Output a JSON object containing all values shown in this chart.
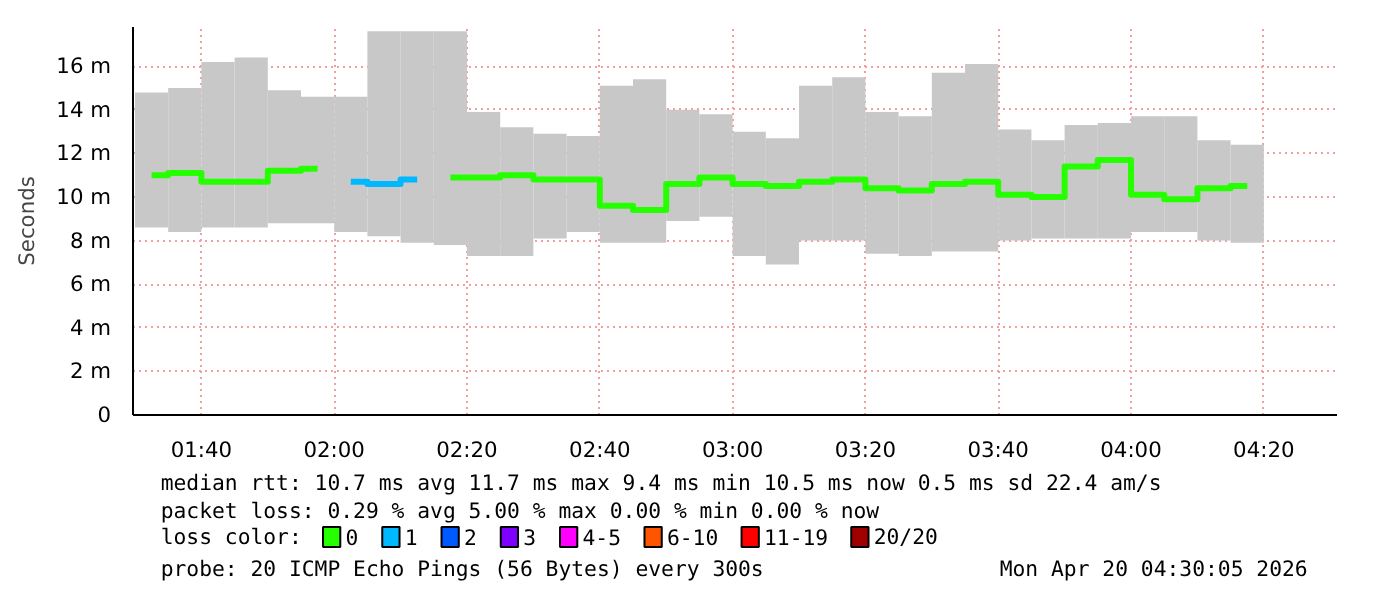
{
  "chart_data": {
    "type": "step",
    "ylabel": "Seconds",
    "x": [
      1.5417,
      1.625,
      1.7083,
      1.7917,
      1.875,
      1.9583,
      2.0417,
      2.125,
      2.2083,
      2.2917,
      2.375,
      2.4583,
      2.5417,
      2.625,
      2.7083,
      2.7917,
      2.875,
      2.9583,
      3.0417,
      3.125,
      3.2083,
      3.2917,
      3.375,
      3.4583,
      3.5417,
      3.625,
      3.7083,
      3.7917,
      3.875,
      3.9583,
      4.0417,
      4.125,
      4.2083,
      4.2917
    ],
    "series": [
      {
        "type": "bar",
        "color": "#c8c8c8",
        "base": [
          8.6,
          8.4,
          8.6,
          8.6,
          8.8,
          8.8,
          8.4,
          8.2,
          7.9,
          7.8,
          7.3,
          7.3,
          8.1,
          8.4,
          7.9,
          7.9,
          8.9,
          9.1,
          7.3,
          6.9,
          8.0,
          8.0,
          7.4,
          7.3,
          7.5,
          7.5,
          8.0,
          8.1,
          8.1,
          8.1,
          8.4,
          8.4,
          8.0,
          7.9
        ],
        "values": [
          6.2,
          6.6,
          7.6,
          7.8,
          6.1,
          5.8,
          6.2,
          9.4,
          9.7,
          9.8,
          6.6,
          5.9,
          4.8,
          4.4,
          7.2,
          7.5,
          5.1,
          4.7,
          5.7,
          5.8,
          7.1,
          7.5,
          6.5,
          6.4,
          8.2,
          8.6,
          5.1,
          4.5,
          5.2,
          5.3,
          5.3,
          5.3,
          4.6,
          4.5
        ]
      },
      {
        "name": "0",
        "color": "#26ff00",
        "values": [
          11.0,
          11.1,
          10.7,
          10.7,
          11.2,
          11.3,
          null,
          null,
          null,
          10.9,
          10.9,
          11.0,
          10.8,
          10.8,
          9.6,
          9.4,
          10.6,
          10.9,
          10.6,
          10.5,
          10.7,
          10.8,
          10.4,
          10.3,
          10.6,
          10.7,
          10.1,
          10.0,
          11.4,
          11.7,
          10.1,
          9.9,
          10.4,
          10.5
        ]
      },
      {
        "name": "1",
        "color": "#00b8ff",
        "values": [
          null,
          null,
          null,
          null,
          null,
          null,
          10.7,
          10.6,
          10.8,
          null,
          null,
          null,
          null,
          null,
          null,
          null,
          null,
          null,
          null,
          null,
          null,
          null,
          null,
          null,
          null,
          null,
          null,
          null,
          null,
          null,
          null,
          null,
          null,
          null
        ]
      },
      {
        "name": "2",
        "color": "#0059ff",
        "values": [
          null,
          null,
          null,
          null,
          null,
          null,
          null,
          null,
          null,
          null,
          null,
          null,
          null,
          null,
          null,
          null,
          null,
          null,
          null,
          null,
          null,
          null,
          null,
          null,
          null,
          null,
          null,
          null,
          null,
          null,
          null,
          null,
          null,
          null
        ]
      },
      {
        "name": "3",
        "color": "#7e00ff",
        "values": [
          null,
          null,
          null,
          null,
          null,
          null,
          null,
          null,
          null,
          null,
          null,
          null,
          null,
          null,
          null,
          null,
          null,
          null,
          null,
          null,
          null,
          null,
          null,
          null,
          null,
          null,
          null,
          null,
          null,
          null,
          null,
          null,
          null,
          null
        ]
      },
      {
        "name": "4-5",
        "color": "#ff00ff",
        "values": [
          null,
          null,
          null,
          null,
          null,
          null,
          null,
          null,
          null,
          null,
          null,
          null,
          null,
          null,
          null,
          null,
          null,
          null,
          null,
          null,
          null,
          null,
          null,
          null,
          null,
          null,
          null,
          null,
          null,
          null,
          null,
          null,
          null,
          null
        ]
      },
      {
        "name": "6-10",
        "color": "#ff5500",
        "values": [
          null,
          null,
          null,
          null,
          null,
          null,
          null,
          null,
          null,
          null,
          null,
          null,
          null,
          null,
          null,
          null,
          null,
          null,
          null,
          null,
          null,
          null,
          null,
          null,
          null,
          null,
          null,
          null,
          null,
          null,
          null,
          null,
          null,
          null
        ]
      },
      {
        "name": "11-19",
        "color": "#ff0000",
        "values": [
          null,
          null,
          null,
          null,
          null,
          null,
          null,
          null,
          null,
          null,
          null,
          null,
          null,
          null,
          null,
          null,
          null,
          null,
          null,
          null,
          null,
          null,
          null,
          null,
          null,
          null,
          null,
          null,
          null,
          null,
          null,
          null,
          null,
          null
        ]
      },
      {
        "name": "20/20",
        "color": "#a10000",
        "values": [
          null,
          null,
          null,
          null,
          null,
          null,
          null,
          null,
          null,
          null,
          null,
          null,
          null,
          null,
          null,
          null,
          null,
          null,
          null,
          null,
          null,
          null,
          null,
          null,
          null,
          null,
          null,
          null,
          null,
          null,
          null,
          null,
          null,
          null
        ]
      }
    ],
    "legend": "bottom",
    "legend_title": "loss color:",
    "xlim": [
      1.495,
      4.517
    ],
    "xticks": [
      {
        "value": 1.6667,
        "label": "01:40"
      },
      {
        "value": 2,
        "label": "02:00"
      },
      {
        "value": 2.3333,
        "label": "02:20"
      },
      {
        "value": 2.6667,
        "label": "02:40"
      },
      {
        "value": 3,
        "label": "03:00"
      },
      {
        "value": 3.3333,
        "label": "03:20"
      },
      {
        "value": 3.6667,
        "label": "03:40"
      },
      {
        "value": 4,
        "label": "04:00"
      },
      {
        "value": 4.3333,
        "label": "04:20"
      }
    ],
    "ylim": [
      0,
      17.8
    ],
    "yticks": [
      0,
      {
        "value": 2,
        "label": "2 m"
      },
      {
        "value": 4,
        "label": "4 m"
      },
      {
        "value": 6,
        "label": "6 m"
      },
      {
        "value": 8,
        "label": "8 m"
      },
      {
        "value": 10,
        "label": "10 m"
      },
      {
        "value": 12,
        "label": "12 m"
      },
      {
        "value": 14,
        "label": "14 m"
      },
      {
        "value": 16,
        "label": "16 m"
      }
    ],
    "grid": true,
    "annotations": [
      "median rtt:  10.7 ms avg  11.7 ms max  9.4 ms min  10.5 ms now  0.5 ms sd  22.4   am/s",
      "packet loss: 0.29 % avg  5.00 % max  0.00 % min  0.00 % now",
      "probe:       20 ICMP Echo Pings (56 Bytes) every 300s",
      "Mon Apr 20 04:30:05 2026"
    ]
  }
}
